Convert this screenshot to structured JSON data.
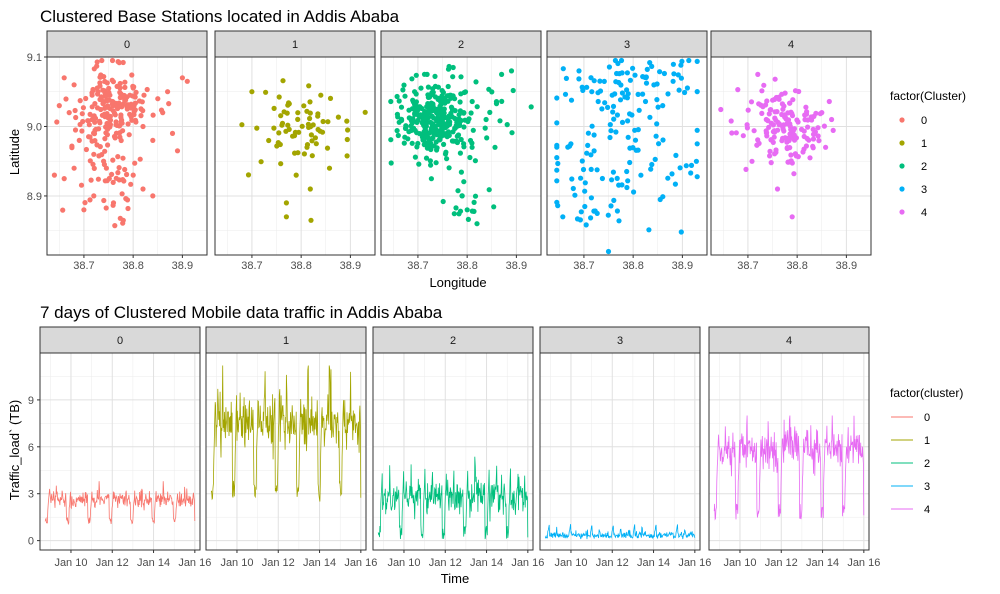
{
  "chart_data": [
    {
      "type": "scatter",
      "title": "Clustered Base Stations located in Addis Ababa",
      "xlabel": "Longitude",
      "ylabel": "Latitude",
      "facets": [
        "0",
        "1",
        "2",
        "3",
        "4"
      ],
      "xlim": [
        38.625,
        38.95
      ],
      "ylim": [
        8.815,
        9.1
      ],
      "xticks": [
        38.7,
        38.8,
        38.9
      ],
      "xtick_labels": [
        "38.7",
        "38.8",
        "38.9"
      ],
      "yticks": [
        8.9,
        9.0,
        9.1
      ],
      "ytick_labels": [
        "8.9",
        "9.0",
        "9.1"
      ],
      "grid": true,
      "legend": {
        "title": "factor(Cluster)",
        "position": "right",
        "entries": [
          "0",
          "1",
          "2",
          "3",
          "4"
        ]
      },
      "colors": [
        "#F8766D",
        "#A3A500",
        "#00BF7D",
        "#00B0F6",
        "#E76BF3"
      ],
      "series": [
        {
          "name": "0",
          "n_points": 260,
          "points": [
            [
              38.66,
              9.07
            ],
            [
              38.68,
              9.06
            ],
            [
              38.9,
              9.07
            ],
            [
              38.91,
              9.065
            ],
            [
              38.65,
              9.03
            ],
            [
              38.67,
              9.02
            ],
            [
              38.64,
              8.93
            ],
            [
              38.66,
              8.925
            ],
            [
              38.68,
              8.94
            ],
            [
              38.7,
              8.88
            ],
            [
              38.72,
              8.9
            ],
            [
              38.78,
              8.865
            ],
            [
              38.8,
              8.93
            ],
            [
              38.82,
              8.91
            ],
            [
              38.84,
              8.9
            ],
            [
              38.88,
              8.99
            ],
            [
              38.89,
              8.965
            ],
            [
              38.86,
              9.02
            ],
            [
              38.85,
              9.04
            ],
            [
              38.8,
              9.03
            ],
            [
              38.82,
              9.0
            ],
            [
              38.84,
              8.98
            ],
            [
              38.87,
              9.05
            ],
            [
              38.76,
              8.89
            ],
            [
              38.74,
              8.95
            ],
            [
              38.72,
              8.96
            ]
          ]
        }
      ]
    },
    {
      "type": "line",
      "title": "7 days of Clustered Mobile data traffic in Addis Ababa",
      "xlabel": "Time",
      "ylabel": "Traffic_load` (TB)",
      "facets": [
        "0",
        "1",
        "2",
        "3",
        "4"
      ],
      "xlim": [
        "2017-01-08 12:00",
        "2017-01-16 06:00"
      ],
      "xticks": [
        "Jan 10",
        "Jan 12",
        "Jan 14",
        "Jan 16"
      ],
      "ylim": [
        -0.6,
        12.0
      ],
      "yticks": [
        0,
        3,
        6,
        9
      ],
      "ytick_labels": [
        "0",
        "3",
        "6",
        "9"
      ],
      "grid": true,
      "legend": {
        "title": "factor(cluster)",
        "position": "right",
        "entries": [
          "0",
          "1",
          "2",
          "3",
          "4"
        ]
      },
      "colors": [
        "#F8766D",
        "#A3A500",
        "#00BF7D",
        "#00B0F6",
        "#E76BF3"
      ],
      "series": [
        {
          "name": "0",
          "x_start": "2017-01-08 18:00",
          "x_end": "2017-01-16 00:00",
          "days": 7,
          "low": 0.9,
          "high": 3.8,
          "mean": 2.6
        },
        {
          "name": "1",
          "x_start": "2017-01-08 18:00",
          "x_end": "2017-01-16 00:00",
          "days": 7,
          "low": 2.0,
          "high": 11.2,
          "mean": 7.5
        },
        {
          "name": "2",
          "x_start": "2017-01-08 18:00",
          "x_end": "2017-01-16 00:00",
          "days": 7,
          "low": -0.2,
          "high": 5.8,
          "mean": 2.8
        },
        {
          "name": "3",
          "x_start": "2017-01-08 18:00",
          "x_end": "2017-01-16 00:00",
          "days": 7,
          "low": 0.1,
          "high": 1.3,
          "mean": 0.35
        },
        {
          "name": "4",
          "x_start": "2017-01-08 18:00",
          "x_end": "2017-01-16 00:00",
          "days": 7,
          "low": 1.0,
          "high": 8.0,
          "mean": 5.8
        }
      ]
    }
  ]
}
